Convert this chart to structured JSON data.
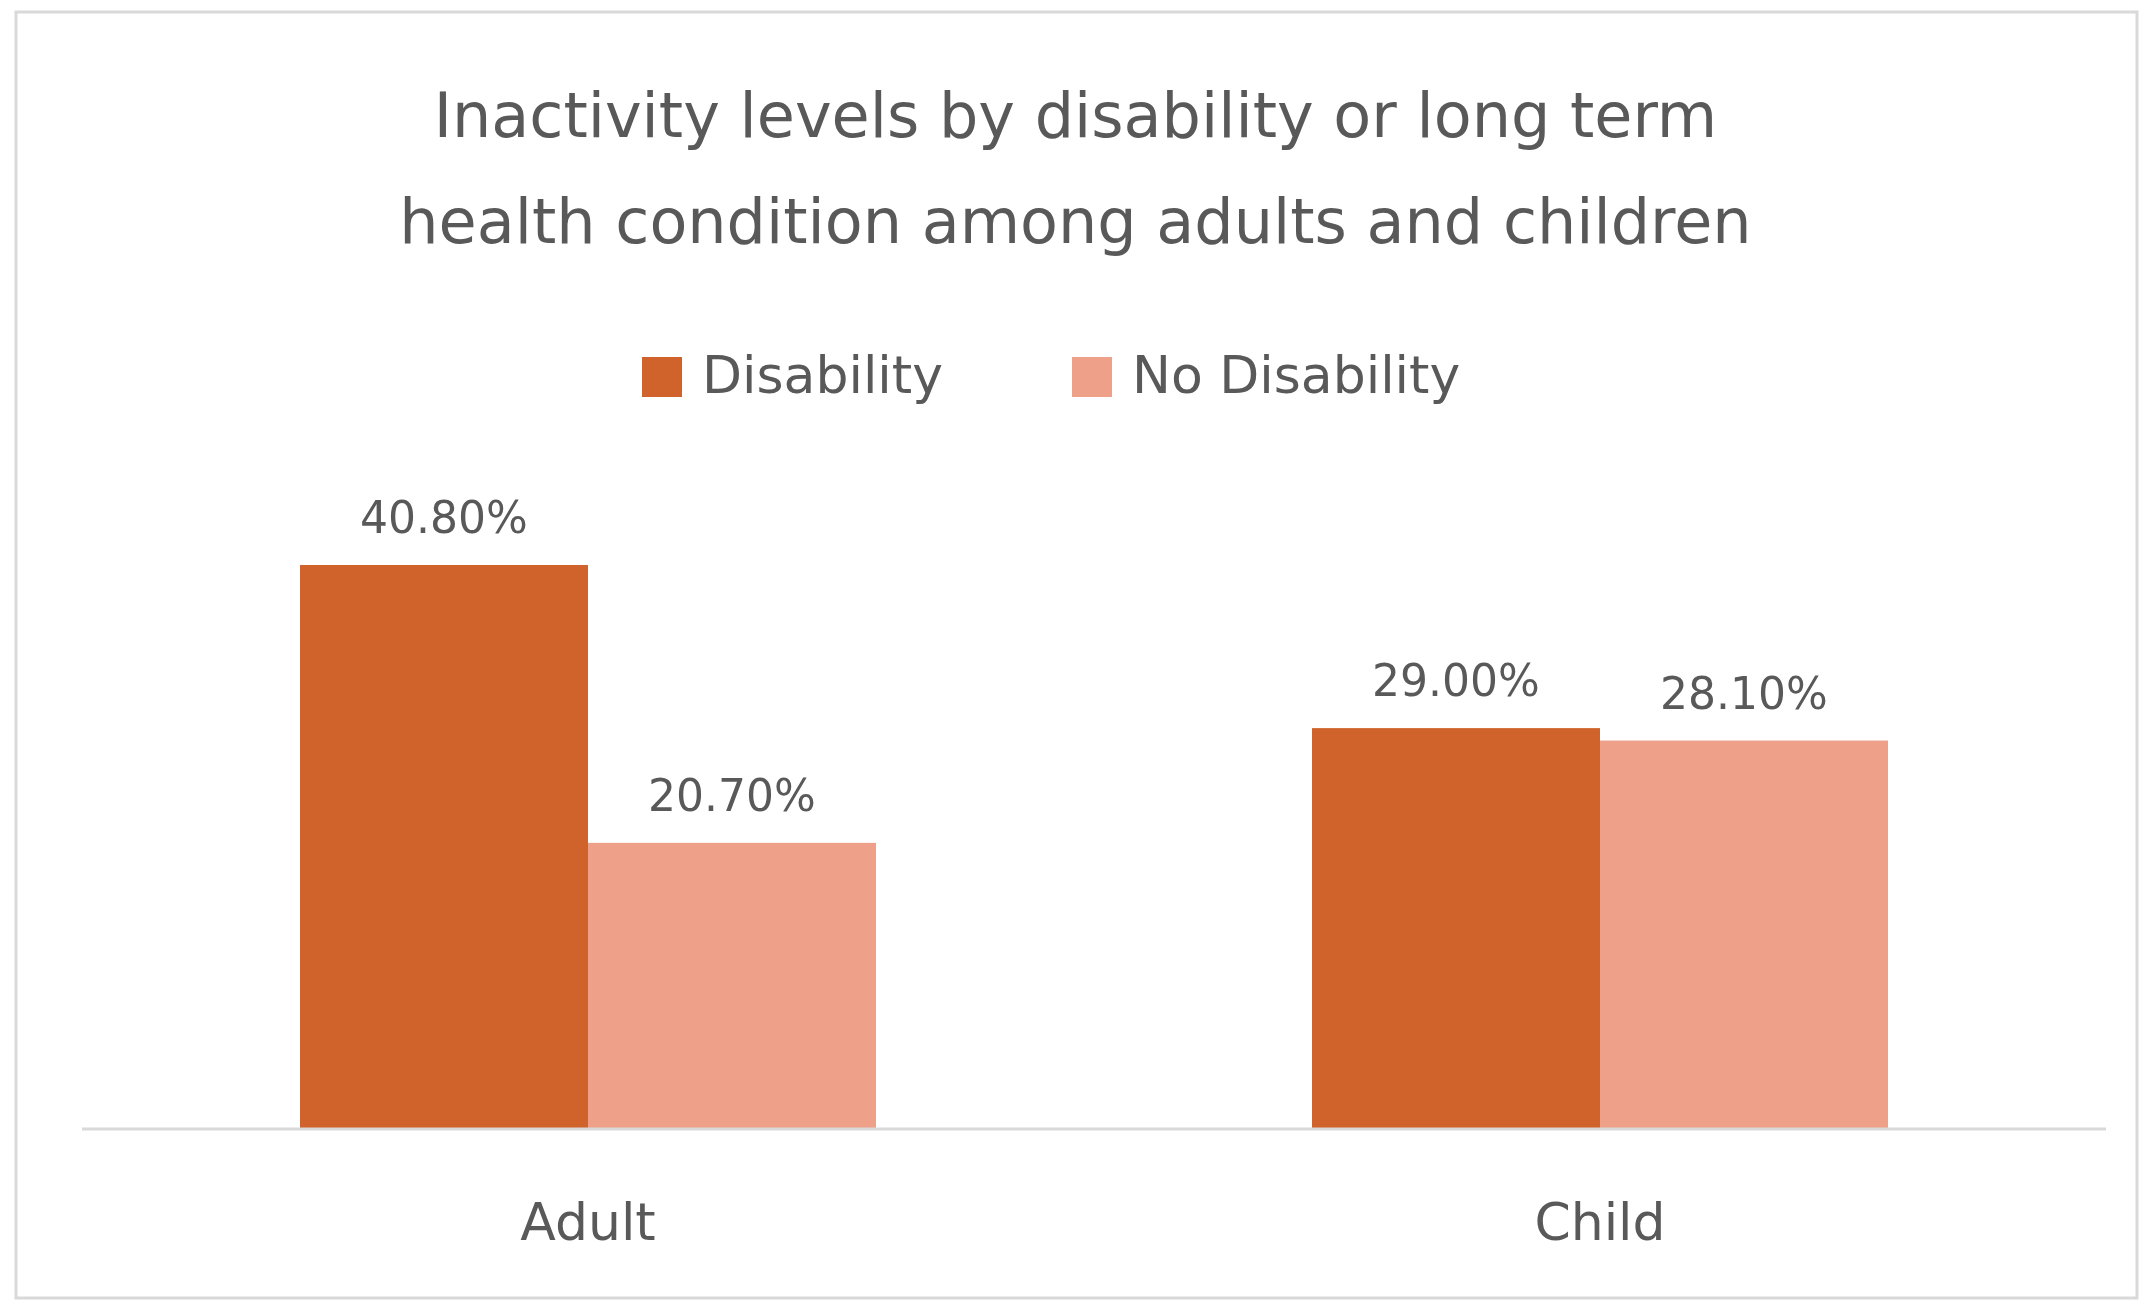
{
  "chart_data": {
    "type": "bar",
    "title": "Inactivity levels by disability or long term health condition among adults and children",
    "categories": [
      "Adult",
      "Child"
    ],
    "series": [
      {
        "name": "Disability",
        "color": "#d0632b",
        "values": [
          40.8,
          29.0
        ],
        "value_labels": [
          "40.80%",
          "29.00%"
        ]
      },
      {
        "name": "No Disability",
        "color": "#eea089",
        "values": [
          20.7,
          28.1
        ],
        "value_labels": [
          "20.70%",
          "28.10%"
        ]
      }
    ],
    "legend": "top"
  }
}
